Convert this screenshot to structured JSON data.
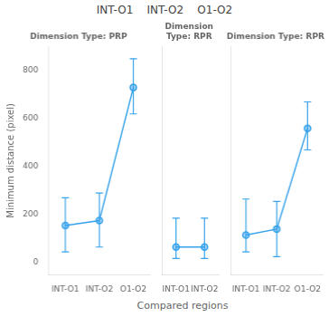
{
  "chart_data": {
    "type": "line",
    "title": "INT-O1    INT-O2    O1-O2",
    "xlabel": "Compared regions",
    "ylabel": "Minimum distance (pixel)",
    "ylim": [
      -50,
      900
    ],
    "yticks": [
      0,
      200,
      400,
      600,
      800
    ],
    "grid": false,
    "marker": "circle",
    "line_style": "solid",
    "series": [
      {
        "name": "Dimension Type: PRP",
        "categories": [
          "INT-O1",
          "INT-O2",
          "O1-O2"
        ],
        "values": [
          155,
          175,
          730
        ],
        "err_low": [
          110,
          110,
          110
        ],
        "err_high": [
          115,
          115,
          120
        ]
      },
      {
        "name": "Dimension Type: RPR",
        "categories": [
          "INT-O1",
          "INT-O2"
        ],
        "values": [
          65,
          65
        ],
        "err_low": [
          48,
          48
        ],
        "err_high": [
          120,
          120
        ]
      },
      {
        "name": "Dimension Type: RPR",
        "categories": [
          "INT-O1",
          "INT-O2",
          "O1-O2"
        ],
        "values": [
          115,
          140,
          560
        ],
        "err_low": [
          70,
          115,
          90
        ],
        "err_high": [
          150,
          115,
          110
        ]
      }
    ]
  }
}
